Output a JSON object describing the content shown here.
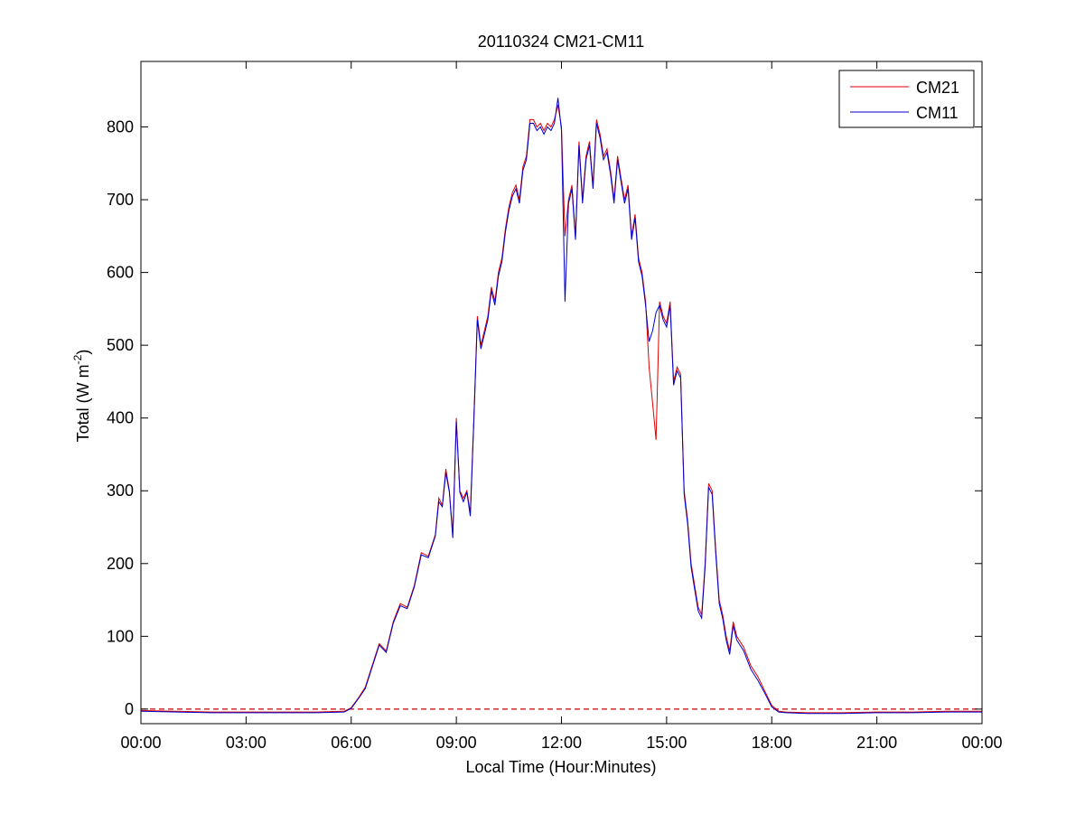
{
  "chart_data": {
    "type": "line",
    "title": "20110324 CM21-CM11",
    "xlabel": "Local Time (Hour:Minutes)",
    "ylabel": {
      "prefix": "Total (W m",
      "superscript": "-2",
      "suffix": ")"
    },
    "xlim": [
      0,
      24
    ],
    "ylim": [
      -20,
      890
    ],
    "x_ticks": [
      {
        "value": 0,
        "label": "00:00"
      },
      {
        "value": 3,
        "label": "03:00"
      },
      {
        "value": 6,
        "label": "06:00"
      },
      {
        "value": 9,
        "label": "09:00"
      },
      {
        "value": 12,
        "label": "12:00"
      },
      {
        "value": 15,
        "label": "15:00"
      },
      {
        "value": 18,
        "label": "18:00"
      },
      {
        "value": 21,
        "label": "21:00"
      },
      {
        "value": 24,
        "label": "00:00"
      }
    ],
    "y_ticks": [
      0,
      100,
      200,
      300,
      400,
      500,
      600,
      700,
      800
    ],
    "grid": false,
    "legend_position": "top-right",
    "reference_line": {
      "y": 0,
      "style": "dashed",
      "color": "#cc0000"
    },
    "series": [
      {
        "name": "CM21",
        "color": "#e00000",
        "x": [
          0,
          1,
          2,
          3,
          4,
          5,
          5.8,
          6,
          6.2,
          6.4,
          6.6,
          6.8,
          7.0,
          7.2,
          7.4,
          7.6,
          7.8,
          8.0,
          8.2,
          8.4,
          8.5,
          8.6,
          8.7,
          8.8,
          8.9,
          9.0,
          9.1,
          9.2,
          9.3,
          9.4,
          9.5,
          9.6,
          9.7,
          9.8,
          9.9,
          10.0,
          10.1,
          10.2,
          10.3,
          10.4,
          10.5,
          10.6,
          10.7,
          10.8,
          10.9,
          11.0,
          11.1,
          11.2,
          11.3,
          11.4,
          11.5,
          11.6,
          11.7,
          11.8,
          11.9,
          12.0,
          12.1,
          12.2,
          12.3,
          12.4,
          12.5,
          12.6,
          12.7,
          12.8,
          12.9,
          13.0,
          13.1,
          13.2,
          13.3,
          13.4,
          13.5,
          13.6,
          13.7,
          13.8,
          13.9,
          14.0,
          14.1,
          14.2,
          14.3,
          14.4,
          14.5,
          14.6,
          14.7,
          14.8,
          14.9,
          15.0,
          15.1,
          15.2,
          15.3,
          15.4,
          15.5,
          15.6,
          15.7,
          15.8,
          15.9,
          16.0,
          16.1,
          16.2,
          16.3,
          16.4,
          16.5,
          16.6,
          16.7,
          16.8,
          16.9,
          17.0,
          17.2,
          17.4,
          17.6,
          17.8,
          18.0,
          18.2,
          18.4,
          19,
          20,
          21,
          22,
          23,
          24
        ],
        "values": [
          -2,
          -3,
          -4,
          -4,
          -4,
          -4,
          -3,
          2,
          15,
          30,
          60,
          90,
          80,
          120,
          145,
          140,
          170,
          215,
          210,
          240,
          290,
          280,
          330,
          300,
          240,
          400,
          300,
          290,
          300,
          270,
          400,
          540,
          500,
          520,
          540,
          580,
          560,
          600,
          620,
          660,
          690,
          710,
          720,
          700,
          745,
          760,
          810,
          810,
          800,
          805,
          795,
          805,
          800,
          810,
          830,
          800,
          650,
          700,
          720,
          650,
          780,
          700,
          760,
          780,
          720,
          810,
          790,
          760,
          770,
          740,
          700,
          760,
          730,
          700,
          720,
          650,
          680,
          620,
          600,
          560,
          470,
          420,
          370,
          560,
          540,
          530,
          560,
          450,
          470,
          460,
          300,
          260,
          200,
          170,
          140,
          130,
          200,
          310,
          300,
          220,
          150,
          130,
          100,
          80,
          120,
          100,
          85,
          60,
          45,
          25,
          5,
          -3,
          -4,
          -5,
          -5,
          -4,
          -4,
          -3,
          -3
        ],
        "label_column": [
          "0",
          "1"
        ]
      },
      {
        "name": "CM11",
        "color": "#0000cc",
        "x": [
          0,
          1,
          2,
          3,
          4,
          5,
          5.8,
          6,
          6.2,
          6.4,
          6.6,
          6.8,
          7.0,
          7.2,
          7.4,
          7.6,
          7.8,
          8.0,
          8.2,
          8.4,
          8.5,
          8.6,
          8.7,
          8.8,
          8.9,
          9.0,
          9.1,
          9.2,
          9.3,
          9.4,
          9.5,
          9.6,
          9.7,
          9.8,
          9.9,
          10.0,
          10.1,
          10.2,
          10.3,
          10.4,
          10.5,
          10.6,
          10.7,
          10.8,
          10.9,
          11.0,
          11.1,
          11.2,
          11.3,
          11.4,
          11.5,
          11.6,
          11.7,
          11.8,
          11.9,
          12.0,
          12.1,
          12.2,
          12.3,
          12.4,
          12.5,
          12.6,
          12.7,
          12.8,
          12.9,
          13.0,
          13.1,
          13.2,
          13.3,
          13.4,
          13.5,
          13.6,
          13.7,
          13.8,
          13.9,
          14.0,
          14.1,
          14.2,
          14.3,
          14.4,
          14.5,
          14.6,
          14.7,
          14.8,
          14.9,
          15.0,
          15.1,
          15.2,
          15.3,
          15.4,
          15.5,
          15.6,
          15.7,
          15.8,
          15.9,
          16.0,
          16.1,
          16.2,
          16.3,
          16.4,
          16.5,
          16.6,
          16.7,
          16.8,
          16.9,
          17.0,
          17.2,
          17.4,
          17.6,
          17.8,
          18.0,
          18.2,
          18.4,
          19,
          20,
          21,
          22,
          23,
          24
        ],
        "values": [
          -3,
          -4,
          -5,
          -5,
          -5,
          -5,
          -4,
          1,
          14,
          28,
          58,
          88,
          78,
          118,
          142,
          138,
          168,
          212,
          208,
          238,
          285,
          278,
          325,
          298,
          235,
          395,
          298,
          285,
          298,
          265,
          395,
          535,
          495,
          515,
          535,
          575,
          555,
          595,
          615,
          655,
          685,
          705,
          715,
          695,
          740,
          755,
          805,
          805,
          795,
          800,
          790,
          800,
          795,
          805,
          840,
          795,
          560,
          695,
          715,
          645,
          775,
          695,
          755,
          775,
          715,
          805,
          785,
          755,
          765,
          735,
          695,
          755,
          725,
          695,
          715,
          645,
          675,
          615,
          595,
          555,
          505,
          520,
          545,
          555,
          535,
          525,
          555,
          445,
          465,
          455,
          295,
          255,
          195,
          165,
          135,
          125,
          195,
          305,
          295,
          215,
          145,
          125,
          95,
          75,
          115,
          95,
          80,
          55,
          40,
          22,
          3,
          -4,
          -5,
          -6,
          -6,
          -5,
          -5,
          -4,
          -4
        ]
      }
    ]
  }
}
